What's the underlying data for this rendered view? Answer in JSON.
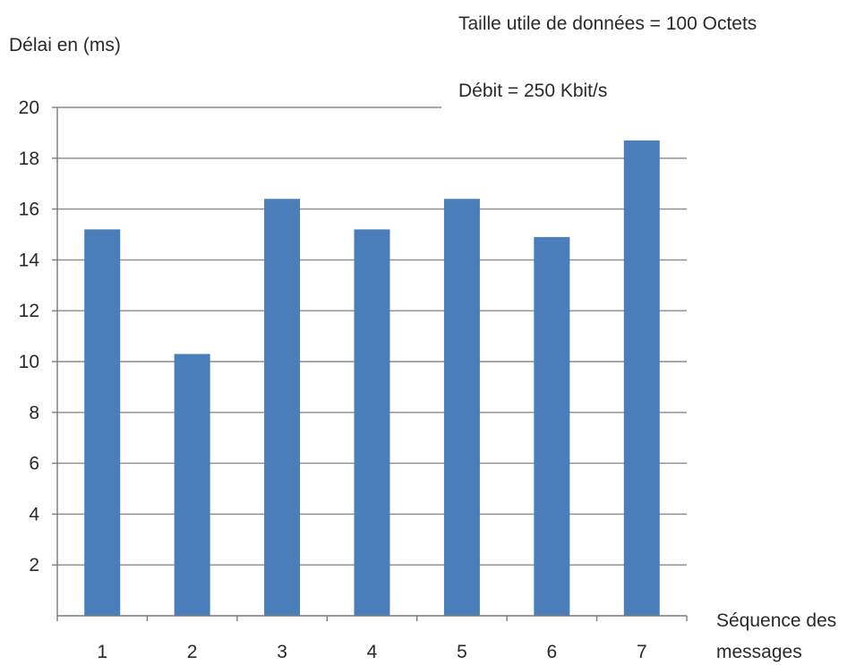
{
  "chart_data": {
    "type": "bar",
    "ylabel": "Délai  en (ms)",
    "xlabel": [
      "Séquence des",
      "messages"
    ],
    "annotations": [
      "Taille utile de données =  100 Octets",
      "Débit = 250 Kbit/s"
    ],
    "categories": [
      "1",
      "2",
      "3",
      "4",
      "5",
      "6",
      "7"
    ],
    "values": [
      15.2,
      10.3,
      16.4,
      15.2,
      16.4,
      14.9,
      18.7
    ],
    "ylim": [
      0,
      20
    ],
    "yticks": [
      2,
      4,
      6,
      8,
      10,
      12,
      14,
      16,
      18,
      20
    ],
    "grid": true,
    "bar_color": "#4a7ebb"
  }
}
